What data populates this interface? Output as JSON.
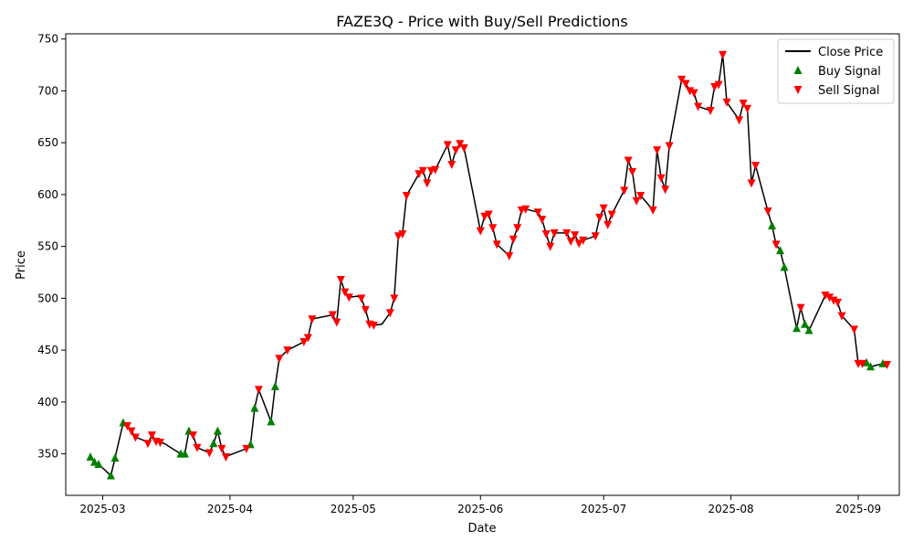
{
  "chart_data": {
    "type": "line",
    "title": "FAZE3Q - Price with Buy/Sell Predictions",
    "xlabel": "Date",
    "ylabel": "Price",
    "x_ticks": [
      "2025-03-01",
      "2025-04-01",
      "2025-05-01",
      "2025-06-01",
      "2025-07-01",
      "2025-08-01",
      "2025-09-01"
    ],
    "x_tick_labels": [
      "2025-03",
      "2025-04",
      "2025-05",
      "2025-06",
      "2025-07",
      "2025-08",
      "2025-09"
    ],
    "y_ticks": [
      350,
      400,
      450,
      500,
      550,
      600,
      650,
      700,
      750
    ],
    "xlim": [
      "2025-02-20",
      "2025-09-11"
    ],
    "ylim": [
      310,
      755
    ],
    "grid": false,
    "legend_position": "top-right",
    "legend": {
      "close": "Close Price",
      "buy": "Buy Signal",
      "sell": "Sell Signal"
    },
    "colors": {
      "close": "#000000",
      "buy": "#008000",
      "sell": "#ff0000"
    },
    "series": [
      {
        "name": "Close Price",
        "points": [
          [
            "2025-02-26",
            347
          ],
          [
            "2025-02-27",
            342
          ],
          [
            "2025-02-28",
            340
          ],
          [
            "2025-03-03",
            329
          ],
          [
            "2025-03-04",
            346
          ],
          [
            "2025-03-06",
            380
          ],
          [
            "2025-03-07",
            377
          ],
          [
            "2025-03-08",
            372
          ],
          [
            "2025-03-09",
            366
          ],
          [
            "2025-03-11",
            363
          ],
          [
            "2025-03-12",
            360
          ],
          [
            "2025-03-13",
            368
          ],
          [
            "2025-03-14",
            362
          ],
          [
            "2025-03-15",
            361
          ],
          [
            "2025-03-16",
            360
          ],
          [
            "2025-03-20",
            350
          ],
          [
            "2025-03-21",
            350
          ],
          [
            "2025-03-22",
            372
          ],
          [
            "2025-03-23",
            368
          ],
          [
            "2025-03-24",
            356
          ],
          [
            "2025-03-27",
            351
          ],
          [
            "2025-03-28",
            360
          ],
          [
            "2025-03-29",
            372
          ],
          [
            "2025-03-30",
            355
          ],
          [
            "2025-03-31",
            347
          ],
          [
            "2025-04-01",
            349
          ],
          [
            "2025-04-05",
            355
          ],
          [
            "2025-04-06",
            359
          ],
          [
            "2025-04-07",
            394
          ],
          [
            "2025-04-08",
            412
          ],
          [
            "2025-04-11",
            381
          ],
          [
            "2025-04-12",
            415
          ],
          [
            "2025-04-13",
            442
          ],
          [
            "2025-04-15",
            450
          ],
          [
            "2025-04-19",
            458
          ],
          [
            "2025-04-20",
            462
          ],
          [
            "2025-04-21",
            480
          ],
          [
            "2025-04-26",
            484
          ],
          [
            "2025-04-27",
            477
          ],
          [
            "2025-04-28",
            518
          ],
          [
            "2025-04-29",
            506
          ],
          [
            "2025-04-30",
            501
          ],
          [
            "2025-05-02",
            502
          ],
          [
            "2025-05-03",
            500
          ],
          [
            "2025-05-04",
            489
          ],
          [
            "2025-05-05",
            475
          ],
          [
            "2025-05-06",
            474
          ],
          [
            "2025-05-08",
            475
          ],
          [
            "2025-05-10",
            486
          ],
          [
            "2025-05-11",
            500
          ],
          [
            "2025-05-12",
            560
          ],
          [
            "2025-05-13",
            562
          ],
          [
            "2025-05-14",
            599
          ],
          [
            "2025-05-17",
            620
          ],
          [
            "2025-05-18",
            623
          ],
          [
            "2025-05-19",
            611
          ],
          [
            "2025-05-20",
            623
          ],
          [
            "2025-05-21",
            624
          ],
          [
            "2025-05-24",
            648
          ],
          [
            "2025-05-25",
            629
          ],
          [
            "2025-05-26",
            643
          ],
          [
            "2025-05-27",
            649
          ],
          [
            "2025-05-28",
            645
          ],
          [
            "2025-06-01",
            565
          ],
          [
            "2025-06-02",
            579
          ],
          [
            "2025-06-03",
            581
          ],
          [
            "2025-06-04",
            568
          ],
          [
            "2025-06-05",
            552
          ],
          [
            "2025-06-08",
            541
          ],
          [
            "2025-06-09",
            557
          ],
          [
            "2025-06-10",
            568
          ],
          [
            "2025-06-11",
            585
          ],
          [
            "2025-06-12",
            586
          ],
          [
            "2025-06-15",
            583
          ],
          [
            "2025-06-16",
            576
          ],
          [
            "2025-06-17",
            562
          ],
          [
            "2025-06-18",
            550
          ],
          [
            "2025-06-19",
            563
          ],
          [
            "2025-06-22",
            563
          ],
          [
            "2025-06-23",
            555
          ],
          [
            "2025-06-24",
            561
          ],
          [
            "2025-06-25",
            553
          ],
          [
            "2025-06-26",
            556
          ],
          [
            "2025-06-29",
            560
          ],
          [
            "2025-06-30",
            578
          ],
          [
            "2025-07-01",
            587
          ],
          [
            "2025-07-02",
            571
          ],
          [
            "2025-07-03",
            581
          ],
          [
            "2025-07-06",
            604
          ],
          [
            "2025-07-07",
            633
          ],
          [
            "2025-07-08",
            622
          ],
          [
            "2025-07-09",
            594
          ],
          [
            "2025-07-10",
            599
          ],
          [
            "2025-07-13",
            585
          ],
          [
            "2025-07-14",
            643
          ],
          [
            "2025-07-15",
            616
          ],
          [
            "2025-07-16",
            605
          ],
          [
            "2025-07-17",
            647
          ],
          [
            "2025-07-20",
            711
          ],
          [
            "2025-07-21",
            707
          ],
          [
            "2025-07-22",
            700
          ],
          [
            "2025-07-23",
            698
          ],
          [
            "2025-07-24",
            685
          ],
          [
            "2025-07-27",
            681
          ],
          [
            "2025-07-28",
            704
          ],
          [
            "2025-07-29",
            706
          ],
          [
            "2025-07-30",
            735
          ],
          [
            "2025-07-31",
            689
          ],
          [
            "2025-08-03",
            672
          ],
          [
            "2025-08-04",
            688
          ],
          [
            "2025-08-05",
            683
          ],
          [
            "2025-08-06",
            611
          ],
          [
            "2025-08-07",
            628
          ],
          [
            "2025-08-10",
            584
          ],
          [
            "2025-08-11",
            570
          ],
          [
            "2025-08-12",
            552
          ],
          [
            "2025-08-13",
            546
          ],
          [
            "2025-08-14",
            530
          ],
          [
            "2025-08-17",
            471
          ],
          [
            "2025-08-18",
            491
          ],
          [
            "2025-08-19",
            475
          ],
          [
            "2025-08-20",
            469
          ],
          [
            "2025-08-24",
            503
          ],
          [
            "2025-08-25",
            501
          ],
          [
            "2025-08-26",
            498
          ],
          [
            "2025-08-27",
            496
          ],
          [
            "2025-08-28",
            483
          ],
          [
            "2025-08-31",
            470
          ],
          [
            "2025-09-01",
            437
          ],
          [
            "2025-09-02",
            437
          ],
          [
            "2025-09-03",
            438
          ],
          [
            "2025-09-04",
            434
          ],
          [
            "2025-09-07",
            437
          ],
          [
            "2025-09-08",
            436
          ]
        ]
      },
      {
        "name": "Buy Signal",
        "points": [
          [
            "2025-02-26",
            347
          ],
          [
            "2025-02-27",
            342
          ],
          [
            "2025-02-28",
            340
          ],
          [
            "2025-03-03",
            329
          ],
          [
            "2025-03-04",
            346
          ],
          [
            "2025-03-06",
            380
          ],
          [
            "2025-03-20",
            350
          ],
          [
            "2025-03-21",
            350
          ],
          [
            "2025-03-22",
            372
          ],
          [
            "2025-03-28",
            360
          ],
          [
            "2025-03-29",
            372
          ],
          [
            "2025-04-06",
            359
          ],
          [
            "2025-04-07",
            394
          ],
          [
            "2025-04-11",
            381
          ],
          [
            "2025-04-12",
            415
          ],
          [
            "2025-08-11",
            570
          ],
          [
            "2025-08-13",
            546
          ],
          [
            "2025-08-14",
            530
          ],
          [
            "2025-08-17",
            471
          ],
          [
            "2025-08-19",
            475
          ],
          [
            "2025-08-20",
            469
          ],
          [
            "2025-09-03",
            438
          ],
          [
            "2025-09-04",
            434
          ],
          [
            "2025-09-07",
            437
          ]
        ]
      },
      {
        "name": "Sell Signal",
        "points": [
          [
            "2025-03-07",
            377
          ],
          [
            "2025-03-08",
            372
          ],
          [
            "2025-03-09",
            366
          ],
          [
            "2025-03-12",
            360
          ],
          [
            "2025-03-13",
            368
          ],
          [
            "2025-03-14",
            362
          ],
          [
            "2025-03-15",
            361
          ],
          [
            "2025-03-23",
            368
          ],
          [
            "2025-03-24",
            356
          ],
          [
            "2025-03-27",
            351
          ],
          [
            "2025-03-30",
            355
          ],
          [
            "2025-03-31",
            347
          ],
          [
            "2025-04-05",
            355
          ],
          [
            "2025-04-08",
            412
          ],
          [
            "2025-04-13",
            442
          ],
          [
            "2025-04-15",
            450
          ],
          [
            "2025-04-19",
            458
          ],
          [
            "2025-04-20",
            462
          ],
          [
            "2025-04-21",
            480
          ],
          [
            "2025-04-26",
            484
          ],
          [
            "2025-04-27",
            477
          ],
          [
            "2025-04-28",
            518
          ],
          [
            "2025-04-29",
            506
          ],
          [
            "2025-04-30",
            501
          ],
          [
            "2025-05-03",
            500
          ],
          [
            "2025-05-04",
            489
          ],
          [
            "2025-05-05",
            475
          ],
          [
            "2025-05-06",
            474
          ],
          [
            "2025-05-10",
            486
          ],
          [
            "2025-05-11",
            500
          ],
          [
            "2025-05-12",
            560
          ],
          [
            "2025-05-13",
            562
          ],
          [
            "2025-05-14",
            599
          ],
          [
            "2025-05-17",
            620
          ],
          [
            "2025-05-18",
            623
          ],
          [
            "2025-05-19",
            611
          ],
          [
            "2025-05-20",
            623
          ],
          [
            "2025-05-21",
            624
          ],
          [
            "2025-05-24",
            648
          ],
          [
            "2025-05-25",
            629
          ],
          [
            "2025-05-26",
            643
          ],
          [
            "2025-05-27",
            649
          ],
          [
            "2025-05-28",
            645
          ],
          [
            "2025-06-01",
            565
          ],
          [
            "2025-06-02",
            579
          ],
          [
            "2025-06-03",
            581
          ],
          [
            "2025-06-04",
            568
          ],
          [
            "2025-06-05",
            552
          ],
          [
            "2025-06-08",
            541
          ],
          [
            "2025-06-09",
            557
          ],
          [
            "2025-06-10",
            568
          ],
          [
            "2025-06-11",
            585
          ],
          [
            "2025-06-12",
            586
          ],
          [
            "2025-06-15",
            583
          ],
          [
            "2025-06-16",
            576
          ],
          [
            "2025-06-17",
            562
          ],
          [
            "2025-06-18",
            550
          ],
          [
            "2025-06-19",
            563
          ],
          [
            "2025-06-22",
            563
          ],
          [
            "2025-06-23",
            555
          ],
          [
            "2025-06-24",
            561
          ],
          [
            "2025-06-25",
            553
          ],
          [
            "2025-06-26",
            556
          ],
          [
            "2025-06-29",
            560
          ],
          [
            "2025-06-30",
            578
          ],
          [
            "2025-07-01",
            587
          ],
          [
            "2025-07-02",
            571
          ],
          [
            "2025-07-03",
            581
          ],
          [
            "2025-07-06",
            604
          ],
          [
            "2025-07-07",
            633
          ],
          [
            "2025-07-08",
            622
          ],
          [
            "2025-07-09",
            594
          ],
          [
            "2025-07-10",
            599
          ],
          [
            "2025-07-13",
            585
          ],
          [
            "2025-07-14",
            643
          ],
          [
            "2025-07-15",
            616
          ],
          [
            "2025-07-16",
            605
          ],
          [
            "2025-07-17",
            647
          ],
          [
            "2025-07-20",
            711
          ],
          [
            "2025-07-21",
            707
          ],
          [
            "2025-07-22",
            700
          ],
          [
            "2025-07-23",
            698
          ],
          [
            "2025-07-24",
            685
          ],
          [
            "2025-07-27",
            681
          ],
          [
            "2025-07-28",
            704
          ],
          [
            "2025-07-29",
            706
          ],
          [
            "2025-07-30",
            735
          ],
          [
            "2025-07-31",
            689
          ],
          [
            "2025-08-03",
            672
          ],
          [
            "2025-08-04",
            688
          ],
          [
            "2025-08-05",
            683
          ],
          [
            "2025-08-06",
            611
          ],
          [
            "2025-08-07",
            628
          ],
          [
            "2025-08-10",
            584
          ],
          [
            "2025-08-12",
            552
          ],
          [
            "2025-08-18",
            491
          ],
          [
            "2025-08-24",
            503
          ],
          [
            "2025-08-25",
            501
          ],
          [
            "2025-08-26",
            498
          ],
          [
            "2025-08-27",
            496
          ],
          [
            "2025-08-28",
            483
          ],
          [
            "2025-08-31",
            470
          ],
          [
            "2025-09-01",
            437
          ],
          [
            "2025-09-02",
            437
          ],
          [
            "2025-09-08",
            436
          ]
        ]
      }
    ]
  }
}
